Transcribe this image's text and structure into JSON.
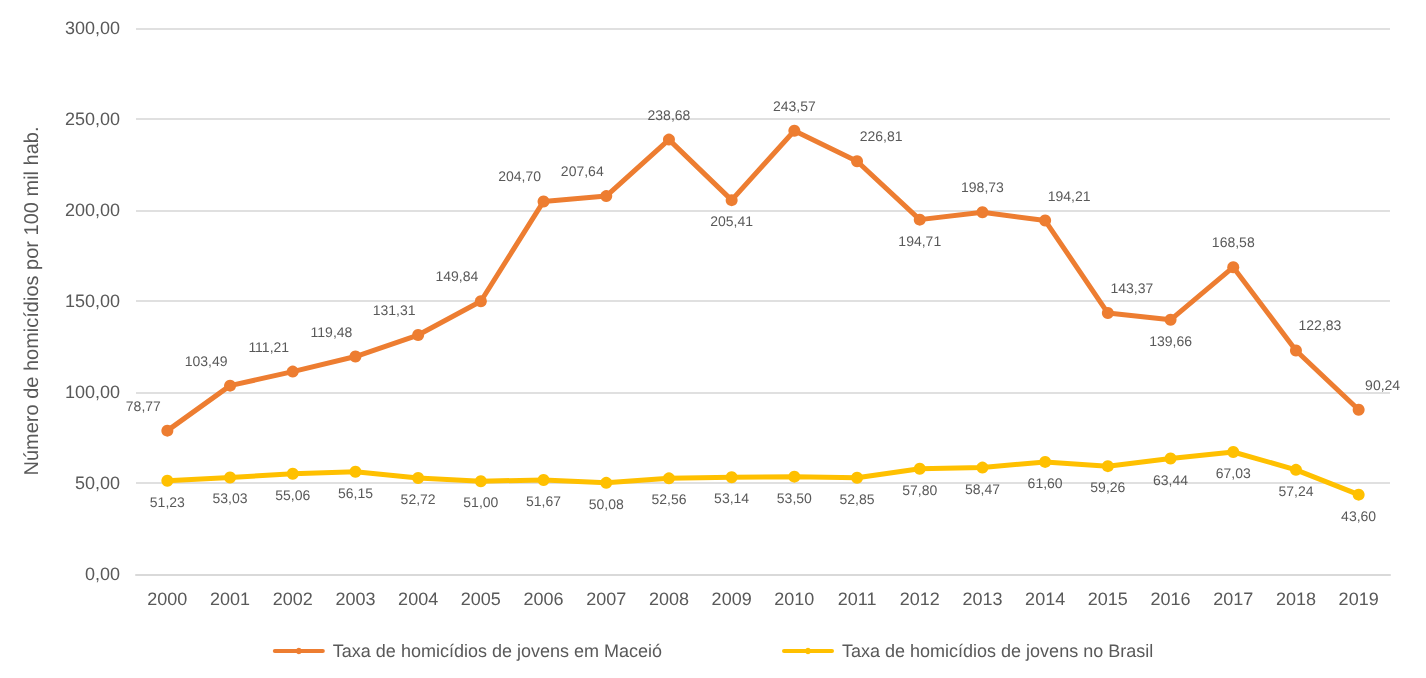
{
  "chart_data": {
    "type": "line",
    "ylabel": "Número de homicídios por 100 mil hab.",
    "categories": [
      "2000",
      "2001",
      "2002",
      "2003",
      "2004",
      "2005",
      "2006",
      "2007",
      "2008",
      "2009",
      "2010",
      "2011",
      "2012",
      "2013",
      "2014",
      "2015",
      "2016",
      "2017",
      "2018",
      "2019"
    ],
    "series": [
      {
        "name": "Taxa de homicídios de jovens em Maceió",
        "color": "#ed7d31",
        "values": [
          78.77,
          103.49,
          111.21,
          119.48,
          131.31,
          149.84,
          204.7,
          207.64,
          238.68,
          205.41,
          243.57,
          226.81,
          194.71,
          198.73,
          194.21,
          143.37,
          139.66,
          168.58,
          122.83,
          90.24
        ],
        "value_labels": [
          "78,77",
          "103,49",
          "111,21",
          "119,48",
          "131,31",
          "149,84",
          "204,70",
          "207,64",
          "238,68",
          "205,41",
          "243,57",
          "226,81",
          "194,71",
          "198,73",
          "194,21",
          "143,37",
          "139,66",
          "168,58",
          "122,83",
          "90,24"
        ]
      },
      {
        "name": "Taxa de homicídios de jovens no Brasil",
        "color": "#ffc000",
        "values": [
          51.23,
          53.03,
          55.06,
          56.15,
          52.72,
          51.0,
          51.67,
          50.08,
          52.56,
          53.14,
          53.5,
          52.85,
          57.8,
          58.47,
          61.6,
          59.26,
          63.44,
          67.03,
          57.24,
          43.6
        ],
        "value_labels": [
          "51,23",
          "53,03",
          "55,06",
          "56,15",
          "52,72",
          "51,00",
          "51,67",
          "50,08",
          "52,56",
          "53,14",
          "53,50",
          "52,85",
          "57,80",
          "58,47",
          "61,60",
          "59,26",
          "63,44",
          "67,03",
          "57,24",
          "43,60"
        ]
      }
    ],
    "ylim": [
      0,
      300
    ],
    "yticks": [
      {
        "value": 0,
        "label": "0,00"
      },
      {
        "value": 50,
        "label": "50,00"
      },
      {
        "value": 100,
        "label": "100,00"
      },
      {
        "value": 150,
        "label": "150,00"
      },
      {
        "value": 200,
        "label": "200,00"
      },
      {
        "value": 250,
        "label": "250,00"
      },
      {
        "value": 300,
        "label": "300,00"
      }
    ],
    "grid": "y",
    "legend": "bottom",
    "marker": "circle",
    "line_style": "solid"
  }
}
